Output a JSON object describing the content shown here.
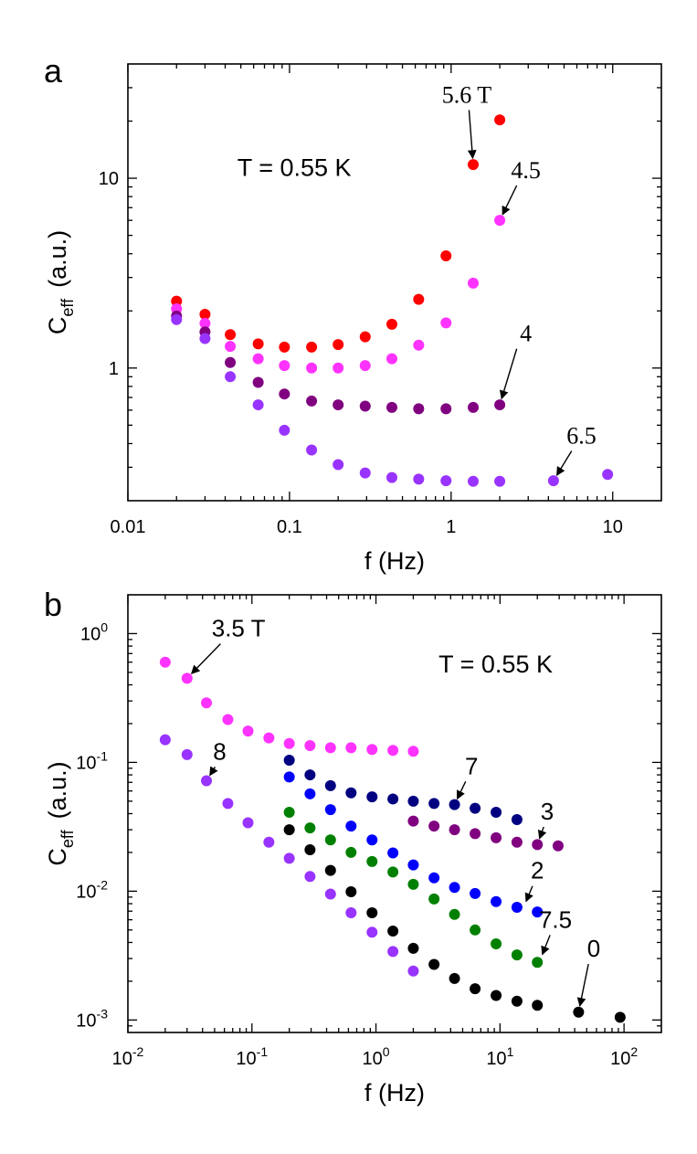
{
  "chart_data": [
    {
      "type": "scatter",
      "panel_label": "a",
      "annotation": "T = 0.55 K",
      "xlabel": "f (Hz)",
      "ylabel_main": "C",
      "ylabel_sub": "eff",
      "ylabel_unit": "(a.u.)",
      "xscale": "log",
      "yscale": "log",
      "xlim": [
        0.01,
        20
      ],
      "ylim": [
        0.2,
        40
      ],
      "x_ticks": [
        {
          "value": 0.01,
          "label": "0.01"
        },
        {
          "value": 0.1,
          "label": "0.1"
        },
        {
          "value": 1,
          "label": "1"
        },
        {
          "value": 10,
          "label": "10"
        }
      ],
      "y_ticks": [
        {
          "value": 1,
          "label": "1"
        },
        {
          "value": 10,
          "label": "10"
        }
      ],
      "series": [
        {
          "color": "#ff0000",
          "x": [
            0.02,
            0.03,
            0.043,
            0.064,
            0.093,
            0.137,
            0.2,
            0.294,
            0.43,
            0.63,
            0.93,
            1.37,
            2.0
          ],
          "y": [
            2.25,
            1.92,
            1.5,
            1.34,
            1.29,
            1.29,
            1.33,
            1.46,
            1.7,
            2.3,
            3.9,
            11.8,
            20.3
          ]
        },
        {
          "color": "#ff33ff",
          "x": [
            0.02,
            0.03,
            0.043,
            0.064,
            0.093,
            0.137,
            0.2,
            0.294,
            0.43,
            0.63,
            0.93,
            1.37,
            2.0
          ],
          "y": [
            2.05,
            1.72,
            1.3,
            1.12,
            1.03,
            1.0,
            1.0,
            1.03,
            1.12,
            1.32,
            1.73,
            2.8,
            6.0
          ]
        },
        {
          "color": "#800080",
          "x": [
            0.02,
            0.03,
            0.043,
            0.064,
            0.093,
            0.137,
            0.2,
            0.294,
            0.43,
            0.63,
            0.93,
            1.37,
            2.0
          ],
          "y": [
            1.88,
            1.55,
            1.07,
            0.84,
            0.73,
            0.67,
            0.64,
            0.63,
            0.62,
            0.61,
            0.61,
            0.62,
            0.64
          ]
        },
        {
          "color": "#9933ff",
          "x": [
            0.02,
            0.03,
            0.043,
            0.064,
            0.093,
            0.137,
            0.2,
            0.294,
            0.43,
            0.63,
            0.93,
            1.37,
            2.0,
            4.3,
            9.3
          ],
          "y": [
            1.8,
            1.43,
            0.9,
            0.64,
            0.47,
            0.37,
            0.31,
            0.28,
            0.265,
            0.26,
            0.255,
            0.253,
            0.253,
            0.255,
            0.275
          ]
        }
      ],
      "labels": [
        {
          "text": "5.6 T",
          "x": 1.25,
          "y": 25,
          "ax": 1.37,
          "ay": 11.8
        },
        {
          "text": "4.5",
          "x": 2.9,
          "y": 10,
          "ax": 2.0,
          "ay": 6.0
        },
        {
          "text": "4",
          "x": 2.9,
          "y": 1.38,
          "ax": 2.0,
          "ay": 0.64
        },
        {
          "text": "6.5",
          "x": 6.4,
          "y": 0.4,
          "ax": 4.3,
          "ay": 0.255
        }
      ]
    },
    {
      "type": "scatter",
      "panel_label": "b",
      "annotation": "T = 0.55 K",
      "xlabel": "f (Hz)",
      "ylabel_main": "C",
      "ylabel_sub": "eff",
      "ylabel_unit": "(a.u.)",
      "xscale": "log",
      "yscale": "log",
      "xlim": [
        0.01,
        200
      ],
      "ylim": [
        0.0008,
        2
      ],
      "x_ticks": [
        {
          "value": 0.01,
          "base": "10",
          "exp": "-2"
        },
        {
          "value": 0.1,
          "base": "10",
          "exp": "-1"
        },
        {
          "value": 1,
          "base": "10",
          "exp": "0"
        },
        {
          "value": 10,
          "base": "10",
          "exp": "1"
        },
        {
          "value": 100,
          "base": "10",
          "exp": "2"
        }
      ],
      "y_ticks": [
        {
          "value": 0.001,
          "base": "10",
          "exp": "-3"
        },
        {
          "value": 0.01,
          "base": "10",
          "exp": "-2"
        },
        {
          "value": 0.1,
          "base": "10",
          "exp": "-1"
        },
        {
          "value": 1,
          "base": "10",
          "exp": "0"
        }
      ],
      "series": [
        {
          "color": "#ff33ff",
          "x": [
            0.02,
            0.03,
            0.043,
            0.064,
            0.093,
            0.137,
            0.2,
            0.294,
            0.43,
            0.63,
            0.93,
            1.37,
            2.0
          ],
          "y": [
            0.6,
            0.45,
            0.29,
            0.215,
            0.175,
            0.155,
            0.14,
            0.135,
            0.13,
            0.13,
            0.126,
            0.124,
            0.122
          ]
        },
        {
          "color": "#9933ff",
          "x": [
            0.02,
            0.03,
            0.043,
            0.064,
            0.093,
            0.137,
            0.2,
            0.294,
            0.43,
            0.63,
            0.93,
            1.37,
            2.0
          ],
          "y": [
            0.15,
            0.115,
            0.072,
            0.048,
            0.034,
            0.024,
            0.018,
            0.013,
            0.0095,
            0.0068,
            0.0048,
            0.0034,
            0.0024
          ]
        },
        {
          "color": "#000080",
          "x": [
            0.2,
            0.294,
            0.43,
            0.63,
            0.93,
            1.37,
            2.0,
            2.94,
            4.3,
            6.3,
            9.3,
            13.7
          ],
          "y": [
            0.104,
            0.08,
            0.066,
            0.058,
            0.054,
            0.052,
            0.05,
            0.048,
            0.047,
            0.044,
            0.041,
            0.036
          ]
        },
        {
          "color": "#800080",
          "x": [
            2.0,
            2.94,
            4.3,
            6.3,
            9.3,
            13.7,
            20,
            29.4
          ],
          "y": [
            0.035,
            0.032,
            0.03,
            0.028,
            0.026,
            0.024,
            0.023,
            0.0225
          ]
        },
        {
          "color": "#0000ff",
          "x": [
            0.2,
            0.294,
            0.43,
            0.63,
            0.93,
            1.37,
            2.0,
            2.94,
            4.3,
            6.3,
            9.3,
            13.7,
            20
          ],
          "y": [
            0.077,
            0.057,
            0.043,
            0.032,
            0.025,
            0.0198,
            0.016,
            0.0127,
            0.0107,
            0.0096,
            0.0083,
            0.0075,
            0.0069
          ]
        },
        {
          "color": "#008000",
          "x": [
            0.2,
            0.294,
            0.43,
            0.63,
            0.93,
            1.37,
            2.0,
            2.94,
            4.3,
            6.3,
            9.3,
            13.7,
            20
          ],
          "y": [
            0.041,
            0.031,
            0.025,
            0.02,
            0.017,
            0.0141,
            0.0113,
            0.0087,
            0.0066,
            0.005,
            0.0039,
            0.0032,
            0.0028
          ]
        },
        {
          "color": "#000000",
          "x": [
            0.2,
            0.294,
            0.43,
            0.63,
            0.93,
            1.37,
            2.0,
            2.94,
            4.3,
            6.3,
            9.3,
            13.7,
            20,
            43,
            93
          ],
          "y": [
            0.03,
            0.021,
            0.0145,
            0.0099,
            0.0068,
            0.0049,
            0.0036,
            0.0027,
            0.0021,
            0.00175,
            0.00155,
            0.0014,
            0.0013,
            0.00115,
            0.00105
          ]
        }
      ],
      "labels": [
        {
          "text": "3.5 T",
          "x": 0.078,
          "y": 0.95,
          "ax": 0.03,
          "ay": 0.45
        },
        {
          "text": "8",
          "x": 0.055,
          "y": 0.105,
          "ax": 0.043,
          "ay": 0.072
        },
        {
          "text": "7",
          "x": 5.9,
          "y": 0.081,
          "ax": 4.3,
          "ay": 0.047
        },
        {
          "text": "3",
          "x": 24,
          "y": 0.036,
          "ax": 20,
          "ay": 0.023
        },
        {
          "text": "2",
          "x": 20,
          "y": 0.0125,
          "ax": 15.5,
          "ay": 0.0075
        },
        {
          "text": "7.5",
          "x": 28,
          "y": 0.0052,
          "ax": 21,
          "ay": 0.0029
        },
        {
          "text": "0",
          "x": 57,
          "y": 0.0031,
          "ax": 43,
          "ay": 0.00115
        }
      ]
    }
  ]
}
